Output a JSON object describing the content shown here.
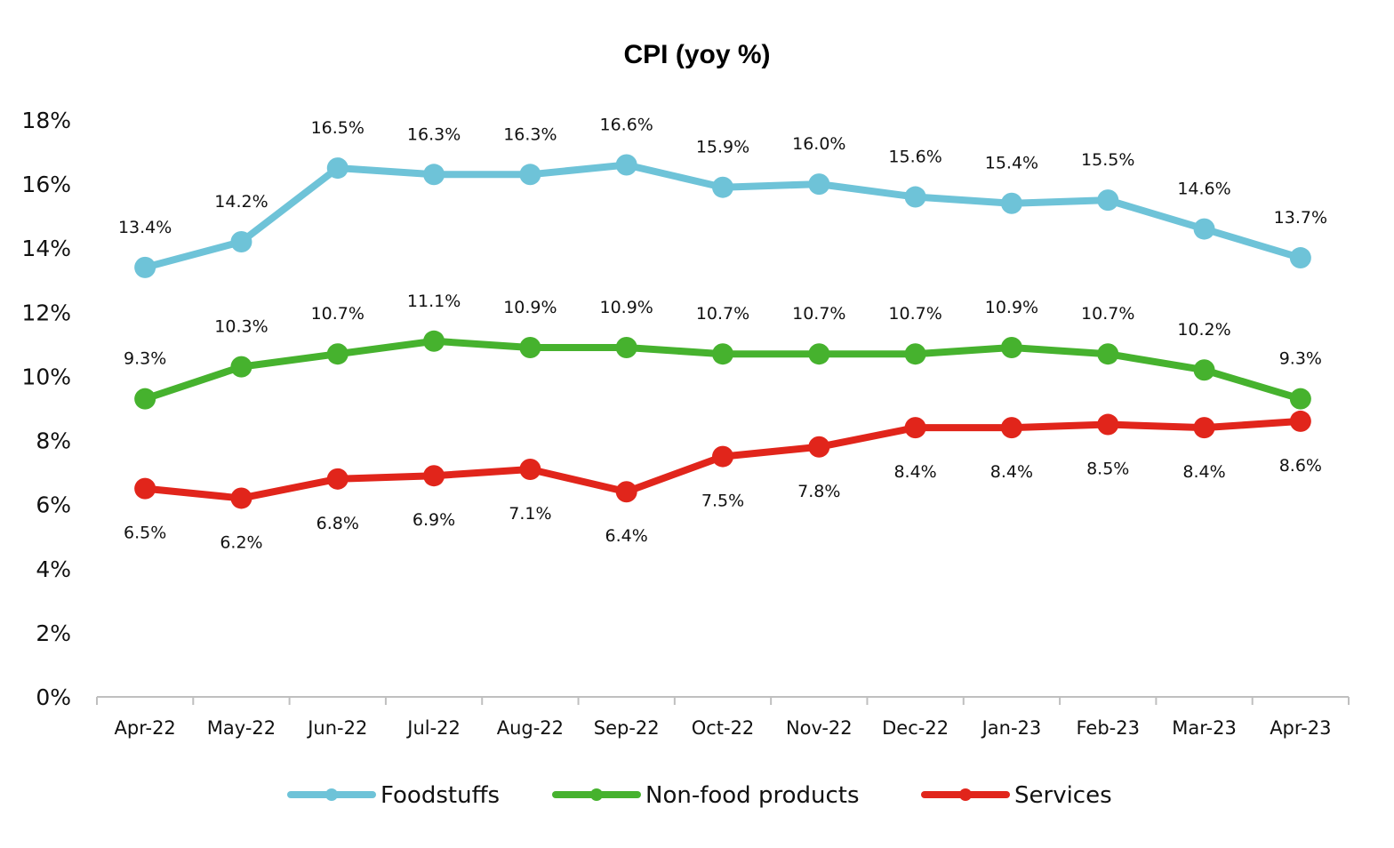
{
  "chart_data": {
    "type": "line",
    "title": "CPI (yoy %)",
    "xlabel": "",
    "ylabel": "",
    "ylim": [
      0,
      18
    ],
    "yticks": [
      0,
      2,
      4,
      6,
      8,
      10,
      12,
      14,
      16,
      18
    ],
    "ytick_labels": [
      "0%",
      "2%",
      "4%",
      "6%",
      "8%",
      "10%",
      "12%",
      "14%",
      "16%",
      "18%"
    ],
    "grid": false,
    "legend_position": "bottom",
    "categories": [
      "Apr-22",
      "May-22",
      "Jun-22",
      "Jul-22",
      "Aug-22",
      "Sep-22",
      "Oct-22",
      "Nov-22",
      "Dec-22",
      "Jan-23",
      "Feb-23",
      "Mar-23",
      "Apr-23"
    ],
    "series": [
      {
        "name": "Foodstuffs",
        "color": "#6EC3D8",
        "values": [
          13.4,
          14.2,
          16.5,
          16.3,
          16.3,
          16.6,
          15.9,
          16.0,
          15.6,
          15.4,
          15.5,
          14.6,
          13.7
        ],
        "labels": [
          "13.4%",
          "14.2%",
          "16.5%",
          "16.3%",
          "16.3%",
          "16.6%",
          "15.9%",
          "16.0%",
          "15.6%",
          "15.4%",
          "15.5%",
          "14.6%",
          "13.7%"
        ],
        "label_position": "above"
      },
      {
        "name": "Non-food products",
        "color": "#46B22E",
        "values": [
          9.3,
          10.3,
          10.7,
          11.1,
          10.9,
          10.9,
          10.7,
          10.7,
          10.7,
          10.9,
          10.7,
          10.2,
          9.3
        ],
        "labels": [
          "9.3%",
          "10.3%",
          "10.7%",
          "11.1%",
          "10.9%",
          "10.9%",
          "10.7%",
          "10.7%",
          "10.7%",
          "10.9%",
          "10.7%",
          "10.2%",
          "9.3%"
        ],
        "label_position": "above"
      },
      {
        "name": "Services",
        "color": "#E1251B",
        "values": [
          6.5,
          6.2,
          6.8,
          6.9,
          7.1,
          6.4,
          7.5,
          7.8,
          8.4,
          8.4,
          8.5,
          8.4,
          8.6
        ],
        "labels": [
          "6.5%",
          "6.2%",
          "6.8%",
          "6.9%",
          "7.1%",
          "6.4%",
          "7.5%",
          "7.8%",
          "8.4%",
          "8.4%",
          "8.5%",
          "8.4%",
          "8.6%"
        ],
        "label_position": "below"
      }
    ]
  }
}
